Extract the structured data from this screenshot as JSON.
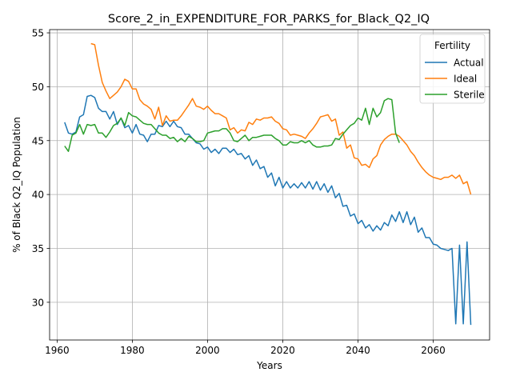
{
  "chart_data": {
    "type": "line",
    "title": "Score_2_in_EXPENDITURE_FOR_PARKS_for_Black_Q2_IQ",
    "xlabel": "Years",
    "ylabel": "% of Black Q2_IQ Population",
    "xlim": [
      1958,
      2075
    ],
    "ylim": [
      26.5,
      55.3
    ],
    "xticks": [
      1960,
      1980,
      2000,
      2020,
      2040,
      2060
    ],
    "yticks": [
      30,
      35,
      40,
      45,
      50,
      55
    ],
    "grid": true,
    "legend": {
      "title": "Fertility",
      "placement": "top-right"
    },
    "series": [
      {
        "name": "Actual",
        "color": "#1f77b4",
        "x": [
          1962,
          1963,
          1964,
          1965,
          1966,
          1967,
          1968,
          1969,
          1970,
          1971,
          1972,
          1973,
          1974,
          1975,
          1976,
          1977,
          1978,
          1979,
          1980,
          1981,
          1982,
          1983,
          1984,
          1985,
          1986,
          1987,
          1988,
          1989,
          1990,
          1991,
          1992,
          1993,
          1994,
          1995,
          1996,
          1997,
          1998,
          1999,
          2000,
          2001,
          2002,
          2003,
          2004,
          2005,
          2006,
          2007,
          2008,
          2009,
          2010,
          2011,
          2012,
          2013,
          2014,
          2015,
          2016,
          2017,
          2018,
          2019,
          2020,
          2021,
          2022,
          2023,
          2024,
          2025,
          2026,
          2027,
          2028,
          2029,
          2030,
          2031,
          2032,
          2033,
          2034,
          2035,
          2036,
          2037,
          2038,
          2039,
          2040,
          2041,
          2042,
          2043,
          2044,
          2045,
          2046,
          2047,
          2048,
          2049,
          2050,
          2051,
          2052,
          2053,
          2054,
          2055,
          2056,
          2057,
          2058,
          2059,
          2060,
          2061,
          2062,
          2063,
          2064,
          2065,
          2066,
          2067,
          2068,
          2069,
          2070
        ],
        "values": [
          46.7,
          45.7,
          45.6,
          45.8,
          47.2,
          47.4,
          49.1,
          49.2,
          49.0,
          48.0,
          47.7,
          47.7,
          47.0,
          47.7,
          46.5,
          47.1,
          46.2,
          46.4,
          45.7,
          46.5,
          45.6,
          45.5,
          44.9,
          45.6,
          45.6,
          46.4,
          46.3,
          46.8,
          46.3,
          46.8,
          46.3,
          46.2,
          45.6,
          45.6,
          45.2,
          44.8,
          44.7,
          44.2,
          44.4,
          43.9,
          44.2,
          43.8,
          44.3,
          44.3,
          43.9,
          44.2,
          43.7,
          43.8,
          43.3,
          43.6,
          42.7,
          43.2,
          42.4,
          42.6,
          41.6,
          42.0,
          40.8,
          41.6,
          40.6,
          41.2,
          40.6,
          41.0,
          40.6,
          41.1,
          40.6,
          41.2,
          40.5,
          41.2,
          40.4,
          41.0,
          40.2,
          40.8,
          39.7,
          40.1,
          38.9,
          39.0,
          38.0,
          38.2,
          37.3,
          37.6,
          36.9,
          37.2,
          36.6,
          37.1,
          36.7,
          37.4,
          37.1,
          38.1,
          37.5,
          38.4,
          37.4,
          38.4,
          37.2,
          37.9,
          36.5,
          36.9,
          36.0,
          36.0,
          35.4,
          35.3,
          35.0,
          34.9,
          34.8,
          35.0,
          28.0,
          35.3,
          28.0,
          35.6,
          27.9
        ]
      },
      {
        "name": "Ideal",
        "color": "#ff7f0e",
        "x": [
          1969,
          1970,
          1971,
          1972,
          1973,
          1974,
          1975,
          1976,
          1977,
          1978,
          1979,
          1980,
          1981,
          1982,
          1983,
          1984,
          1985,
          1986,
          1987,
          1988,
          1989,
          1990,
          1991,
          1992,
          1993,
          1994,
          1995,
          1996,
          1997,
          1998,
          1999,
          2000,
          2001,
          2002,
          2003,
          2004,
          2005,
          2006,
          2007,
          2008,
          2009,
          2010,
          2011,
          2012,
          2013,
          2014,
          2015,
          2016,
          2017,
          2018,
          2019,
          2020,
          2021,
          2022,
          2023,
          2024,
          2025,
          2026,
          2027,
          2028,
          2029,
          2030,
          2031,
          2032,
          2033,
          2034,
          2035,
          2036,
          2037,
          2038,
          2039,
          2040,
          2041,
          2042,
          2043,
          2044,
          2045,
          2046,
          2047,
          2048,
          2049,
          2050,
          2051,
          2052,
          2053,
          2054,
          2055,
          2056,
          2057,
          2058,
          2059,
          2060,
          2061,
          2062,
          2063,
          2064,
          2065,
          2066,
          2067,
          2068,
          2069,
          2070
        ],
        "values": [
          54.0,
          53.9,
          52.0,
          50.4,
          49.6,
          48.9,
          49.2,
          49.5,
          50.0,
          50.7,
          50.5,
          49.8,
          49.8,
          48.8,
          48.4,
          48.2,
          47.9,
          47.0,
          48.1,
          46.4,
          47.3,
          46.8,
          46.9,
          46.9,
          47.3,
          47.8,
          48.3,
          48.9,
          48.2,
          48.1,
          47.9,
          48.2,
          47.8,
          47.5,
          47.5,
          47.3,
          47.1,
          46.0,
          46.2,
          45.7,
          46.0,
          45.9,
          46.7,
          46.5,
          47.0,
          46.9,
          47.1,
          47.1,
          47.2,
          46.8,
          46.6,
          46.1,
          46.0,
          45.5,
          45.6,
          45.5,
          45.4,
          45.2,
          45.7,
          46.1,
          46.6,
          47.2,
          47.3,
          47.4,
          46.8,
          47.0,
          45.5,
          45.8,
          44.3,
          44.6,
          43.4,
          43.3,
          42.7,
          42.8,
          42.5,
          43.3,
          43.6,
          44.6,
          45.1,
          45.4,
          45.6,
          45.6,
          45.4,
          45.0,
          44.6,
          44.0,
          43.6,
          43.0,
          42.5,
          42.1,
          41.8,
          41.6,
          41.5,
          41.4,
          41.6,
          41.6,
          41.8,
          41.5,
          41.8,
          41.0,
          41.2,
          40.0
        ]
      },
      {
        "name": "Sterile",
        "color": "#2ca02c",
        "x": [
          1962,
          1963,
          1964,
          1965,
          1966,
          1967,
          1968,
          1969,
          1970,
          1971,
          1972,
          1973,
          1974,
          1975,
          1976,
          1977,
          1978,
          1979,
          1980,
          1981,
          1982,
          1983,
          1984,
          1985,
          1986,
          1987,
          1988,
          1989,
          1990,
          1991,
          1992,
          1993,
          1994,
          1995,
          1996,
          1997,
          1998,
          1999,
          2000,
          2001,
          2002,
          2003,
          2004,
          2005,
          2006,
          2007,
          2008,
          2009,
          2010,
          2011,
          2012,
          2013,
          2014,
          2015,
          2016,
          2017,
          2018,
          2019,
          2020,
          2021,
          2022,
          2023,
          2024,
          2025,
          2026,
          2027,
          2028,
          2029,
          2030,
          2031,
          2032,
          2033,
          2034,
          2035,
          2036,
          2037,
          2038,
          2039,
          2040,
          2041,
          2042,
          2043,
          2044,
          2045,
          2046,
          2047,
          2048,
          2049,
          2050,
          2051
        ],
        "values": [
          44.5,
          44.0,
          45.5,
          45.7,
          46.5,
          45.6,
          46.5,
          46.4,
          46.5,
          45.7,
          45.7,
          45.3,
          45.8,
          46.4,
          46.6,
          47.1,
          46.4,
          47.6,
          47.3,
          47.2,
          46.9,
          46.6,
          46.5,
          46.5,
          46.1,
          45.7,
          45.5,
          45.5,
          45.2,
          45.3,
          44.9,
          45.2,
          44.9,
          45.4,
          45.2,
          44.9,
          44.9,
          45.0,
          45.7,
          45.8,
          45.9,
          45.9,
          46.1,
          46.1,
          45.7,
          45.0,
          44.9,
          45.2,
          45.5,
          45.0,
          45.3,
          45.3,
          45.4,
          45.5,
          45.5,
          45.5,
          45.2,
          45.0,
          44.6,
          44.6,
          44.9,
          44.8,
          44.8,
          45.0,
          44.8,
          45.0,
          44.6,
          44.4,
          44.4,
          44.5,
          44.5,
          44.6,
          45.2,
          45.1,
          45.6,
          46.0,
          46.4,
          46.6,
          47.1,
          46.9,
          48.0,
          46.5,
          48.0,
          47.2,
          47.6,
          48.7,
          48.9,
          48.8,
          45.7,
          44.8
        ]
      }
    ]
  }
}
